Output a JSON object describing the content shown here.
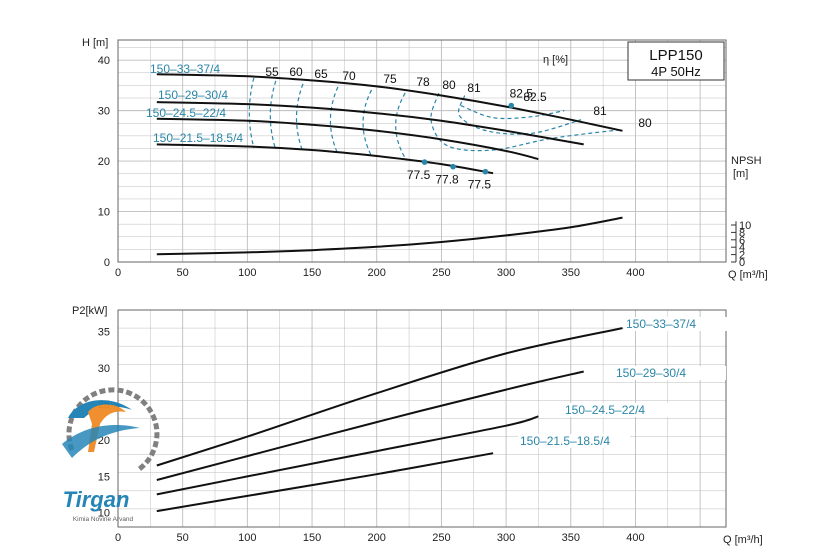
{
  "colors": {
    "curve": "#111111",
    "label_blue": "#2a86a8",
    "eff_dash": "#2a86a8",
    "grid": "#bdbdbd",
    "point": "#2a86a8",
    "logo_blue": "#1b7fb4",
    "logo_orange": "#f08a24",
    "logo_gray": "#7a7a7a"
  },
  "logo": {
    "text": "Tirgan",
    "subtext": "Kimia Novine Arvand"
  },
  "chart_data": [
    {
      "type": "line",
      "title": "LPP150",
      "subtitle": "4P  50Hz",
      "ylabel": "H [m]",
      "xlabel": "Q [m³/h]",
      "xlim": [
        0,
        470
      ],
      "ylim": [
        0,
        44
      ],
      "xticks": [
        "0",
        "50",
        "100",
        "150",
        "200",
        "250",
        "300",
        "350",
        "400"
      ],
      "yticks": [
        "0",
        "10",
        "20",
        "30",
        "40"
      ],
      "grid": true,
      "efficiency_axis_label": "η [%]",
      "series": [
        {
          "name": "150–33–37/4",
          "x": [
            30,
            100,
            150,
            200,
            250,
            300,
            350,
            390
          ],
          "y": [
            37.2,
            36.8,
            36.0,
            34.8,
            33.0,
            30.8,
            28.2,
            26.0
          ]
        },
        {
          "name": "150–29–30/4",
          "x": [
            30,
            100,
            150,
            200,
            250,
            300,
            360
          ],
          "y": [
            31.7,
            31.3,
            30.6,
            29.5,
            28.0,
            26.0,
            23.3
          ]
        },
        {
          "name": "150–24.5–22/4",
          "x": [
            30,
            100,
            150,
            200,
            250,
            300,
            325
          ],
          "y": [
            28.4,
            28.0,
            27.2,
            26.0,
            24.3,
            22.0,
            20.4
          ]
        },
        {
          "name": "150–21.5–18.5/4",
          "x": [
            30,
            100,
            150,
            200,
            250,
            290
          ],
          "y": [
            23.3,
            22.9,
            22.2,
            21.0,
            19.4,
            17.6
          ]
        }
      ],
      "npsh": {
        "label": "NPSH",
        "unit": "[m]",
        "ticks": [
          "0",
          "2",
          "4",
          "6",
          "8",
          "10"
        ],
        "x": [
          30,
          100,
          150,
          200,
          250,
          300,
          350,
          390
        ],
        "y": [
          2.1,
          2.6,
          3.2,
          4.1,
          5.4,
          7.2,
          9.4,
          12.0
        ]
      },
      "efficiency_labels": [
        "55",
        "60",
        "65",
        "70",
        "75",
        "78",
        "80",
        "81",
        "82.5",
        "81",
        "80"
      ],
      "efficiency_points": [
        {
          "label": "77.5",
          "x": 237,
          "y": 19.8
        },
        {
          "label": "77.8",
          "x": 259,
          "y": 18.9
        },
        {
          "label": "77.5",
          "x": 284,
          "y": 17.9
        },
        {
          "label": "82.5",
          "x": 304,
          "y": 31.0
        }
      ]
    },
    {
      "type": "line",
      "ylabel": "P2[kW]",
      "xlabel": "Q [m³/h]",
      "xlim": [
        0,
        470
      ],
      "ylim": [
        8,
        38
      ],
      "xticks": [
        "0",
        "50",
        "100",
        "150",
        "200",
        "250",
        "300",
        "350",
        "400"
      ],
      "yticks": [
        "10",
        "15",
        "20",
        "25",
        "30",
        "35"
      ],
      "grid": true,
      "series": [
        {
          "name": "150–33–37/4",
          "x": [
            30,
            100,
            200,
            300,
            390
          ],
          "y": [
            16.5,
            20.5,
            26.5,
            32.0,
            35.5
          ]
        },
        {
          "name": "150–29–30/4",
          "x": [
            30,
            100,
            200,
            300,
            360
          ],
          "y": [
            14.5,
            17.8,
            22.5,
            27.0,
            29.5
          ]
        },
        {
          "name": "150–24.5–22/4",
          "x": [
            30,
            100,
            200,
            300,
            325
          ],
          "y": [
            12.5,
            15.0,
            18.5,
            22.0,
            23.3
          ]
        },
        {
          "name": "150–21.5–18.5/4",
          "x": [
            30,
            100,
            200,
            290
          ],
          "y": [
            10.2,
            12.3,
            15.3,
            18.2
          ]
        }
      ]
    }
  ]
}
